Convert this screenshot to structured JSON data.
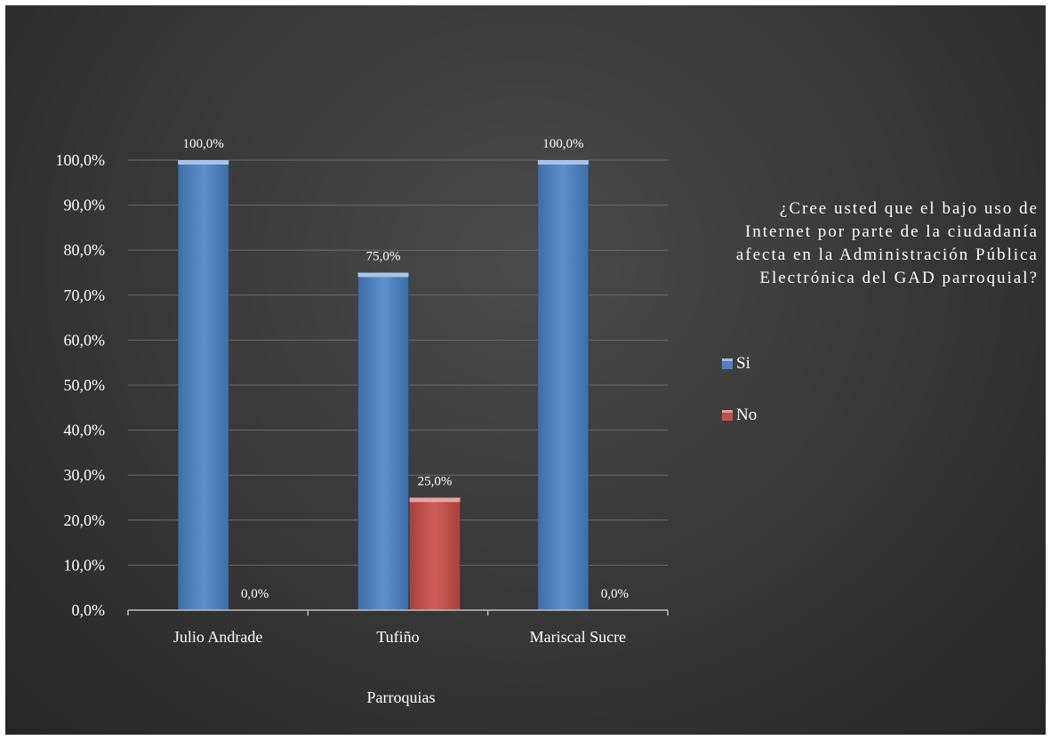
{
  "chart_data": {
    "type": "bar",
    "title_lines": [
      "¿Cree usted que el bajo uso de",
      "Internet por parte de la ciudadanía",
      "afecta en la Administración Pública",
      "Electrónica del GAD parroquial?"
    ],
    "xlabel": "Parroquias",
    "ylabel": "",
    "categories": [
      "Julio Andrade",
      "Tufiño",
      "Mariscal Sucre"
    ],
    "series": [
      {
        "name": "Si",
        "color": "#4f81bd",
        "values": [
          100.0,
          75.0,
          100.0
        ],
        "labels": [
          "100,0%",
          "75,0%",
          "100,0%"
        ]
      },
      {
        "name": "No",
        "color": "#c0504d",
        "values": [
          0.0,
          25.0,
          0.0
        ],
        "labels": [
          "0,0%",
          "25,0%",
          "0,0%"
        ]
      }
    ],
    "ylim": [
      0,
      100
    ],
    "yticks": [
      "0,0%",
      "10,0%",
      "20,0%",
      "30,0%",
      "40,0%",
      "50,0%",
      "60,0%",
      "70,0%",
      "80,0%",
      "90,0%",
      "100,0%"
    ],
    "grid": true,
    "legend_position": "right"
  }
}
